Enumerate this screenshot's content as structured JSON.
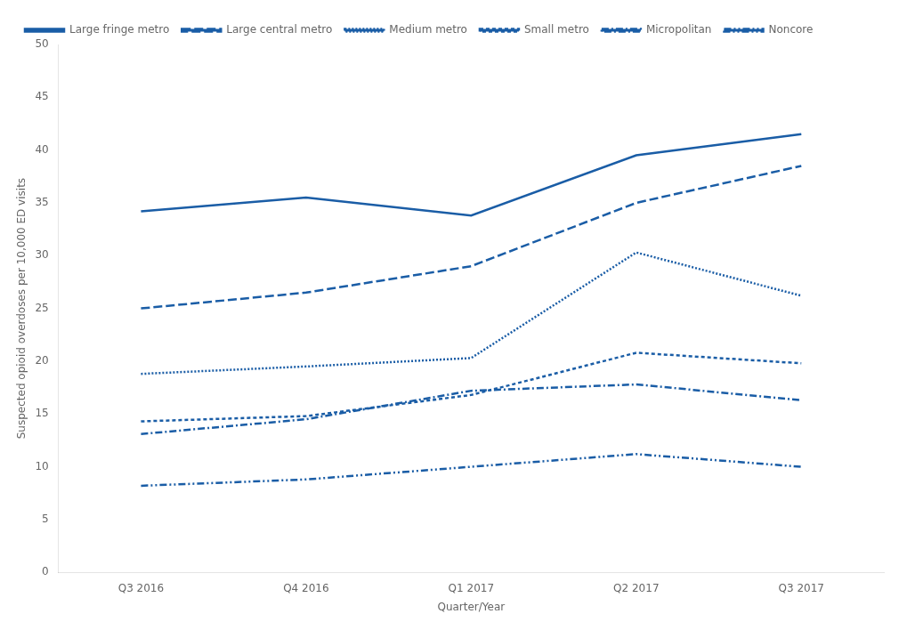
{
  "chart_data": {
    "type": "line",
    "categories": [
      "Q3 2016",
      "Q4 2016",
      "Q1 2017",
      "Q2 2017",
      "Q3 2017"
    ],
    "series": [
      {
        "name": "Large fringe metro",
        "values": [
          34.2,
          35.5,
          33.8,
          39.5,
          41.5
        ],
        "line_style": "solid"
      },
      {
        "name": "Large central metro",
        "values": [
          25.0,
          26.5,
          29.0,
          35.0,
          38.5
        ],
        "line_style": "long_dash"
      },
      {
        "name": "Medium metro",
        "values": [
          18.8,
          19.5,
          20.3,
          30.3,
          26.2
        ],
        "line_style": "dotted"
      },
      {
        "name": "Small metro",
        "values": [
          14.3,
          14.8,
          16.8,
          20.8,
          19.8
        ],
        "line_style": "short_dash"
      },
      {
        "name": "Micropolitan",
        "values": [
          13.1,
          14.5,
          17.2,
          17.8,
          16.3
        ],
        "line_style": "dash_dot"
      },
      {
        "name": "Noncore",
        "values": [
          8.2,
          8.8,
          10.0,
          11.2,
          10.0
        ],
        "line_style": "dash_dot_dot"
      }
    ],
    "color": "#1a5da6",
    "xlabel": "Quarter/Year",
    "ylabel": "Suspected opioid overdoses per 10,000 ED visits",
    "ylim": [
      0,
      50
    ],
    "yticks": [
      0,
      5,
      10,
      15,
      20,
      25,
      30,
      35,
      40,
      45,
      50
    ],
    "grid": false,
    "legend": "upper left"
  }
}
